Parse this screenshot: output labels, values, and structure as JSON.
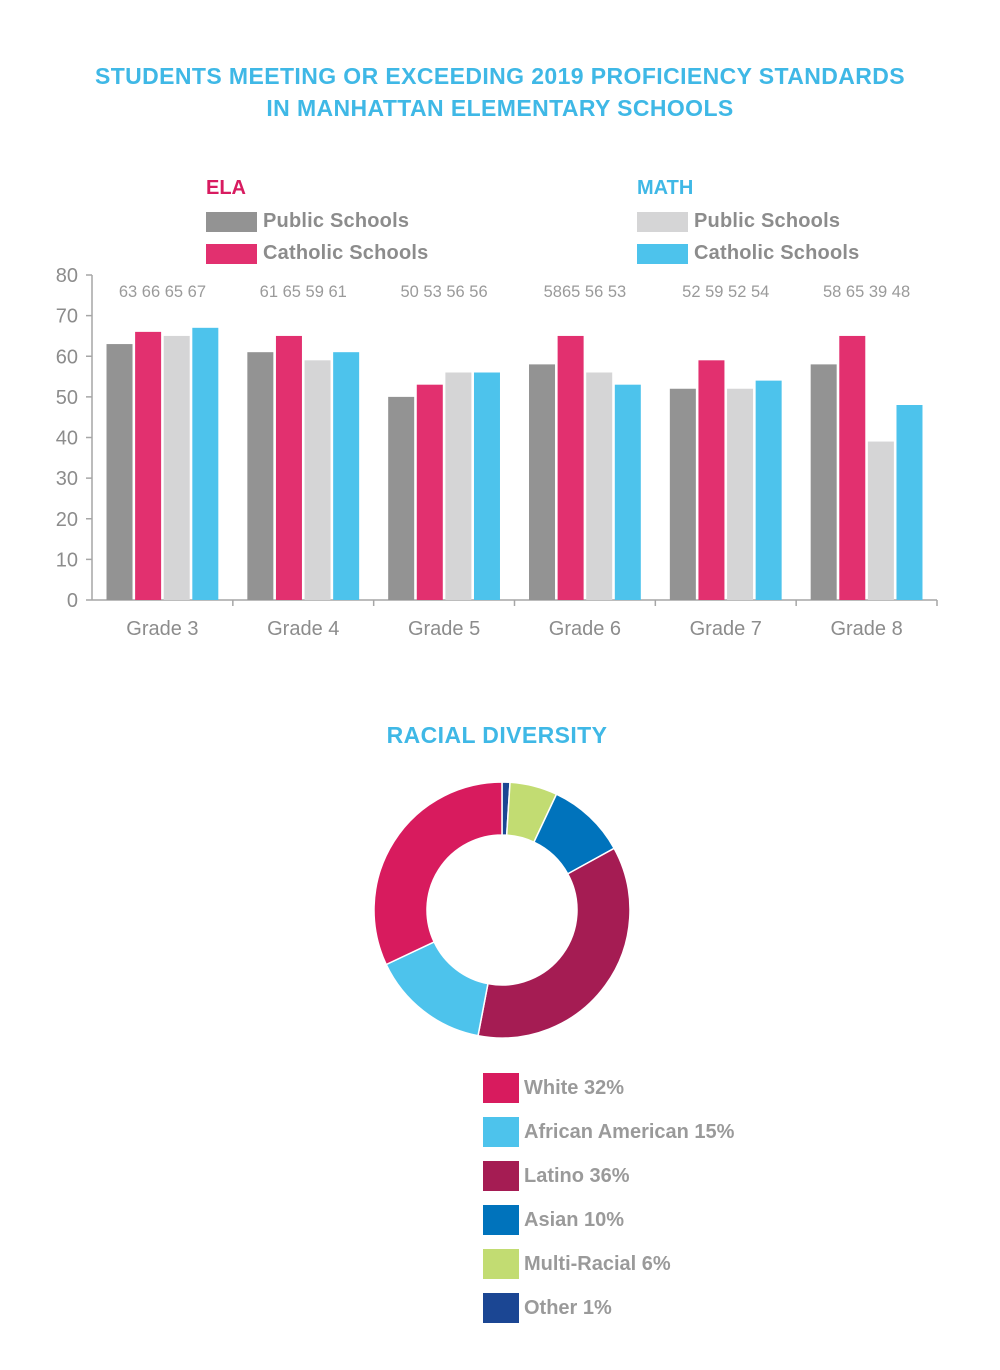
{
  "title": {
    "line1": "STUDENTS MEETING OR EXCEEDING 2019 PROFICIENCY STANDARDS",
    "line2": "IN MANHATTAN ELEMENTARY SCHOOLS"
  },
  "legend": {
    "ela": {
      "heading": "ELA",
      "color": "#d81b60",
      "public_label": "Public Schools",
      "catholic_label": "Catholic Schools"
    },
    "math": {
      "heading": "MATH",
      "color": "#3fb8e6",
      "public_label": "Public Schools",
      "catholic_label": "Catholic Schools"
    }
  },
  "chart_data": [
    {
      "type": "bar",
      "title": "STUDENTS MEETING OR EXCEEDING 2019 PROFICIENCY STANDARDS IN MANHATTAN ELEMENTARY SCHOOLS",
      "xlabel": "",
      "ylabel": "",
      "categories": [
        "Grade 3",
        "Grade 4",
        "Grade 5",
        "Grade 6",
        "Grade 7",
        "Grade 8"
      ],
      "series": [
        {
          "name": "ELA Public Schools",
          "color": "#939393",
          "values": [
            63,
            61,
            50,
            58,
            52,
            58
          ]
        },
        {
          "name": "ELA Catholic Schools",
          "color": "#e2306f",
          "values": [
            66,
            65,
            53,
            65,
            59,
            65
          ]
        },
        {
          "name": "MATH Public Schools",
          "color": "#d5d5d6",
          "values": [
            65,
            59,
            56,
            56,
            52,
            39
          ]
        },
        {
          "name": "MATH Catholic Schools",
          "color": "#4dc3ec",
          "values": [
            67,
            61,
            56,
            53,
            54,
            48
          ]
        }
      ],
      "value_labels": [
        "63 66 65 67",
        "61 65 59 61",
        "50 53 56 56",
        "5865 56 53",
        "52 59 52 54",
        "58 65 39 48"
      ],
      "ylim": [
        0,
        80
      ],
      "yticks": [
        0,
        10,
        20,
        30,
        40,
        50,
        60,
        70,
        80
      ],
      "grid": false,
      "legend_position": "top"
    },
    {
      "type": "pie",
      "title": "RACIAL DIVERSITY",
      "donut": true,
      "slices": [
        {
          "name": "White",
          "label": "White 32%",
          "value": 32,
          "color": "#d81b5e"
        },
        {
          "name": "African American",
          "label": "African American 15%",
          "value": 15,
          "color": "#4dc3ec"
        },
        {
          "name": "Latino",
          "label": "Latino 36%",
          "value": 36,
          "color": "#a51c53"
        },
        {
          "name": "Asian",
          "label": "Asian 10%",
          "value": 10,
          "color": "#0073bc"
        },
        {
          "name": "Multi-Racial",
          "label": "Multi-Racial 6%",
          "value": 6,
          "color": "#c2dc72"
        },
        {
          "name": "Other",
          "label": "Other 1%",
          "value": 1,
          "color": "#1b4693"
        }
      ],
      "legend_position": "bottom"
    }
  ]
}
